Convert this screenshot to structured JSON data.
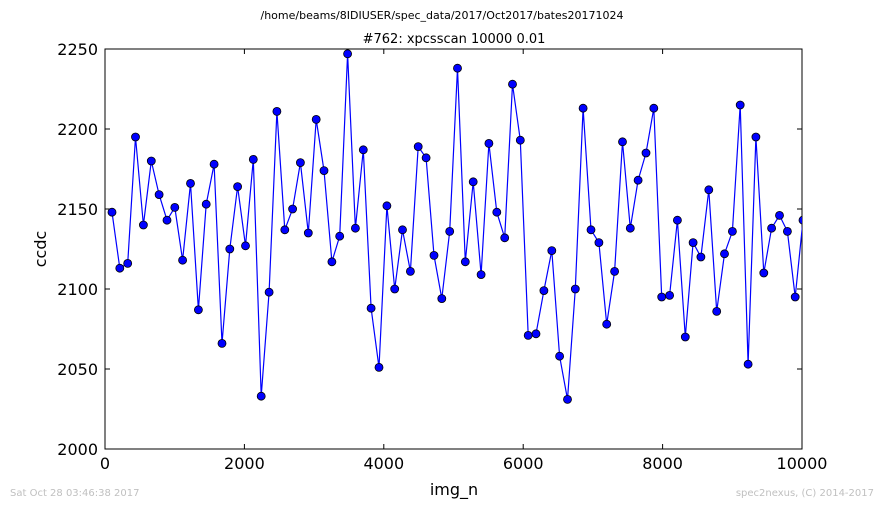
{
  "suptitle": "/home/beams/8IDIUSER/spec_data/2017/Oct2017/bates20171024",
  "footer": {
    "left": "Sat Oct 28 03:46:38 2017",
    "right": "spec2nexus, (C) 2014-2017"
  },
  "chart_data": {
    "type": "line",
    "title": "#762: xpcsscan 10000 0.01",
    "xlabel": "img_n",
    "ylabel": "ccdc",
    "xlim": [
      0,
      10000
    ],
    "ylim": [
      2000,
      2250
    ],
    "xticks": [
      0,
      2000,
      4000,
      6000,
      8000,
      10000
    ],
    "yticks": [
      2000,
      2050,
      2100,
      2150,
      2200,
      2250
    ],
    "grid": false,
    "legend": false,
    "color": "#0000ff",
    "marker": "circle",
    "x": [
      100,
      213,
      326,
      438,
      551,
      664,
      776,
      889,
      1002,
      1114,
      1227,
      1340,
      1452,
      1565,
      1678,
      1790,
      1903,
      2016,
      2128,
      2241,
      2354,
      2466,
      2579,
      2692,
      2804,
      2917,
      3030,
      3142,
      3255,
      3368,
      3480,
      3593,
      3706,
      3818,
      3931,
      4044,
      4156,
      4269,
      4382,
      4494,
      4607,
      4720,
      4832,
      4945,
      5058,
      5170,
      5283,
      5396,
      5508,
      5621,
      5734,
      5846,
      5959,
      6072,
      6184,
      6297,
      6410,
      6522,
      6635,
      6748,
      6860,
      6973,
      7086,
      7198,
      7311,
      7424,
      7536,
      7649,
      7762,
      7874,
      7987,
      8100,
      8212,
      8325,
      8438,
      8550,
      8663,
      8776,
      8888,
      9001,
      9114,
      9226,
      9339,
      9452,
      9564,
      9677,
      9790,
      9902,
      10015
    ],
    "y": [
      2148,
      2113,
      2116,
      2195,
      2140,
      2180,
      2159,
      2143,
      2151,
      2118,
      2166,
      2087,
      2153,
      2178,
      2066,
      2125,
      2164,
      2127,
      2181,
      2033,
      2098,
      2211,
      2137,
      2150,
      2179,
      2135,
      2206,
      2174,
      2117,
      2133,
      2247,
      2138,
      2187,
      2088,
      2051,
      2152,
      2100,
      2137,
      2111,
      2189,
      2182,
      2121,
      2094,
      2136,
      2238,
      2117,
      2167,
      2109,
      2191,
      2148,
      2132,
      2228,
      2193,
      2071,
      2072,
      2099,
      2124,
      2058,
      2031,
      2100,
      2213,
      2137,
      2129,
      2078,
      2111,
      2192,
      2138,
      2168,
      2185,
      2213,
      2095,
      2096,
      2143,
      2070,
      2129,
      2120,
      2162,
      2086,
      2122,
      2136,
      2215,
      2053,
      2195,
      2110,
      2138,
      2146,
      2136,
      2095,
      2143
    ]
  }
}
